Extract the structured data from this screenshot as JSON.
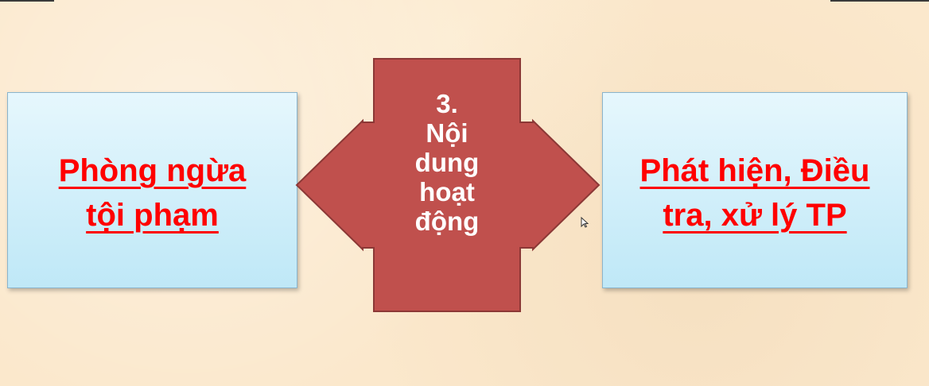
{
  "diagram": {
    "left_box": {
      "lines": [
        "Phòng ngừa",
        "tội phạm"
      ]
    },
    "center_arrow": {
      "lines": [
        "3.",
        "Nội",
        "dung",
        "hoạt",
        "động"
      ]
    },
    "right_box": {
      "lines": [
        "Phát hiện, Điều",
        "tra, xử lý TP"
      ]
    }
  },
  "colors": {
    "background": "#fbe8cc",
    "box_fill": "#c6eaf8",
    "box_text": "#ff0000",
    "arrow_fill": "#c0504d",
    "arrow_stroke": "#8c3836",
    "arrow_text": "#ffffff"
  }
}
